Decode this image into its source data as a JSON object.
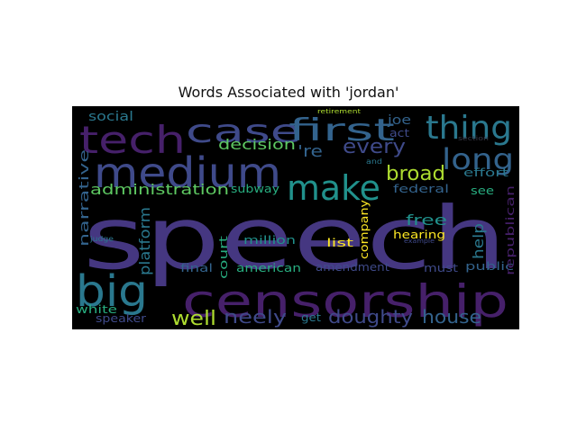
{
  "title": "Words Associated with 'jordan'",
  "colors": {
    "purple_dark": "#46206a",
    "purple": "#453781",
    "indigo": "#3f4a8a",
    "blue": "#33638d",
    "teal_blue": "#2a788e",
    "teal": "#21918c",
    "green_teal": "#28ae80",
    "green": "#5ec962",
    "lime": "#addc30",
    "yellow": "#fde725",
    "grey": "#3a3a4a"
  },
  "words": [
    {
      "text": "speech",
      "color": "purple"
    },
    {
      "text": "censorship",
      "color": "purple_dark"
    },
    {
      "text": "medium",
      "color": "indigo"
    },
    {
      "text": "tech",
      "color": "purple_dark"
    },
    {
      "text": "case",
      "color": "indigo"
    },
    {
      "text": "first",
      "color": "blue"
    },
    {
      "text": "thing",
      "color": "teal_blue"
    },
    {
      "text": "make",
      "color": "teal"
    },
    {
      "text": "big",
      "color": "teal_blue"
    },
    {
      "text": "long",
      "color": "blue"
    },
    {
      "text": "`",
      "color": "teal_blue"
    },
    {
      "text": "`",
      "color": "teal_blue"
    },
    {
      "text": "every",
      "color": "indigo"
    },
    {
      "text": "broad",
      "color": "lime"
    },
    {
      "text": "decision",
      "color": "green"
    },
    {
      "text": "administration",
      "color": "green"
    },
    {
      "text": "'re",
      "color": "blue"
    },
    {
      "text": "doughty",
      "color": "indigo"
    },
    {
      "text": "house",
      "color": "blue"
    },
    {
      "text": "neely",
      "color": "indigo"
    },
    {
      "text": "well",
      "color": "lime"
    },
    {
      "text": "narrative",
      "color": "blue"
    },
    {
      "text": "platform",
      "color": "teal_blue"
    },
    {
      "text": "free",
      "color": "teal"
    },
    {
      "text": "help",
      "color": "teal_blue"
    },
    {
      "text": "social",
      "color": "teal_blue"
    },
    {
      "text": "joe",
      "color": "blue"
    },
    {
      "text": "act",
      "color": "indigo"
    },
    {
      "text": "effort",
      "color": "teal_blue"
    },
    {
      "text": "federal",
      "color": "blue"
    },
    {
      "text": "see",
      "color": "green_teal"
    },
    {
      "text": "subway",
      "color": "green_teal"
    },
    {
      "text": "company",
      "color": "yellow"
    },
    {
      "text": "hearing",
      "color": "yellow"
    },
    {
      "text": "list",
      "color": "yellow"
    },
    {
      "text": "million",
      "color": "teal"
    },
    {
      "text": "court",
      "color": "green_teal"
    },
    {
      "text": "final",
      "color": "blue"
    },
    {
      "text": "american",
      "color": "green_teal"
    },
    {
      "text": "amendment",
      "color": "indigo"
    },
    {
      "text": "must",
      "color": "indigo"
    },
    {
      "text": "public",
      "color": "blue"
    },
    {
      "text": "republican",
      "color": "purple_dark"
    },
    {
      "text": "white",
      "color": "green_teal"
    },
    {
      "text": "speaker",
      "color": "indigo"
    },
    {
      "text": "get",
      "color": "teal_blue"
    },
    {
      "text": "judge",
      "color": "teal_blue"
    },
    {
      "text": "example",
      "color": "indigo"
    },
    {
      "text": "retirement",
      "color": "lime"
    },
    {
      "text": "section",
      "color": "grey"
    },
    {
      "text": "and",
      "color": "teal_blue"
    }
  ]
}
